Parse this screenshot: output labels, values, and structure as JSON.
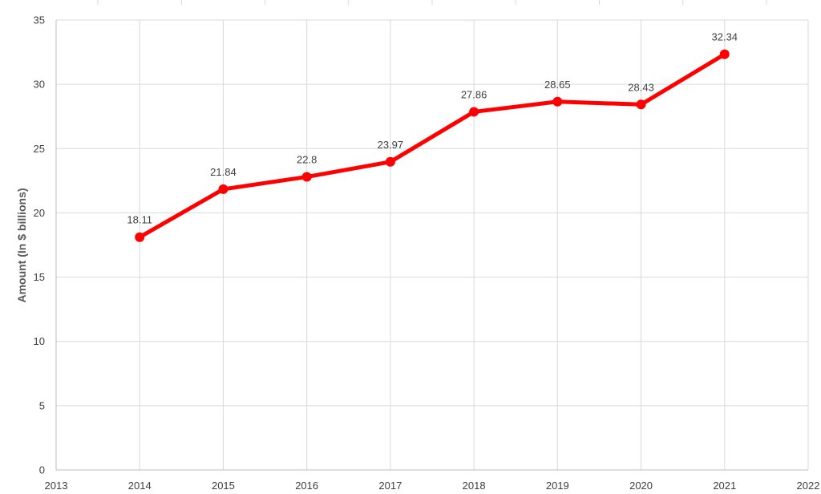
{
  "chart_data": {
    "type": "line",
    "title": "",
    "xlabel": "",
    "ylabel": "Amount (In $ billions)",
    "xlim": [
      2013,
      2022
    ],
    "ylim": [
      0,
      35
    ],
    "x_ticks": [
      2013,
      2014,
      2015,
      2016,
      2017,
      2018,
      2019,
      2020,
      2021,
      2022
    ],
    "y_ticks": [
      0,
      5,
      10,
      15,
      20,
      25,
      30,
      35
    ],
    "grid": true,
    "legend": "none",
    "series": [
      {
        "color": "#ff0000",
        "x": [
          2014,
          2015,
          2016,
          2017,
          2018,
          2019,
          2020,
          2021
        ],
        "values": [
          18.11,
          21.84,
          22.8,
          23.97,
          27.86,
          28.65,
          28.43,
          32.34
        ],
        "labels": [
          "18.11",
          "21.84",
          "22.8",
          "23.97",
          "27.86",
          "28.65",
          "28.43",
          "32.34"
        ]
      }
    ]
  }
}
